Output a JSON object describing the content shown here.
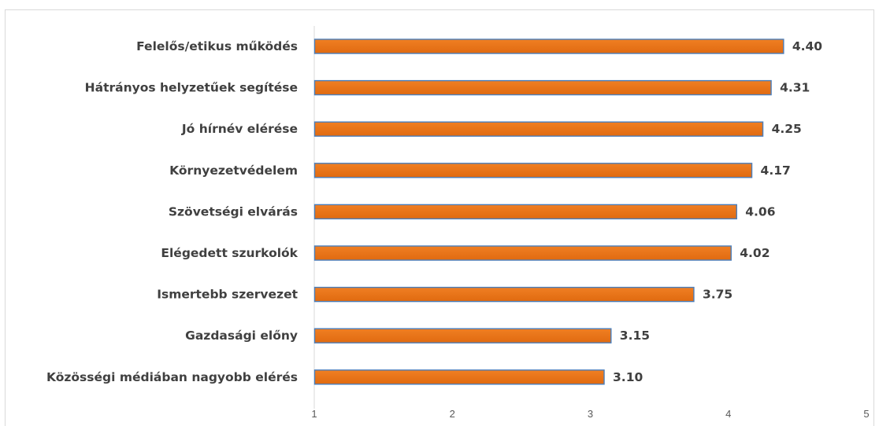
{
  "chart_data": {
    "type": "bar",
    "orientation": "horizontal",
    "title": "",
    "xlabel": "",
    "ylabel": "",
    "categories": [
      "Felelős/etikus működés",
      "Hátrányos helyzetűek segítése",
      "Jó hírnév elérése",
      "Környezetvédelem",
      "Szövetségi elvárás",
      "Elégedett szurkolók",
      "Ismertebb szervezet",
      "Gazdasági előny",
      "Közösségi médiában nagyobb elérés"
    ],
    "values": [
      4.4,
      4.31,
      4.25,
      4.17,
      4.06,
      4.02,
      3.75,
      3.15,
      3.1
    ],
    "value_labels": [
      "4.40",
      "4.31",
      "4.25",
      "4.17",
      "4.06",
      "4.02",
      "3.75",
      "3.15",
      "3.10"
    ],
    "xlim": [
      1,
      5
    ],
    "xticks": [
      "1",
      "2",
      "3",
      "4",
      "5"
    ],
    "grid": false,
    "legend": "none",
    "colors": {
      "bar_fill": "#f07f23",
      "bar_fill_dark": "#e06a10",
      "bar_edge": "#4a7ebb",
      "text": "#404040",
      "axis": "#d9d9d9"
    }
  }
}
